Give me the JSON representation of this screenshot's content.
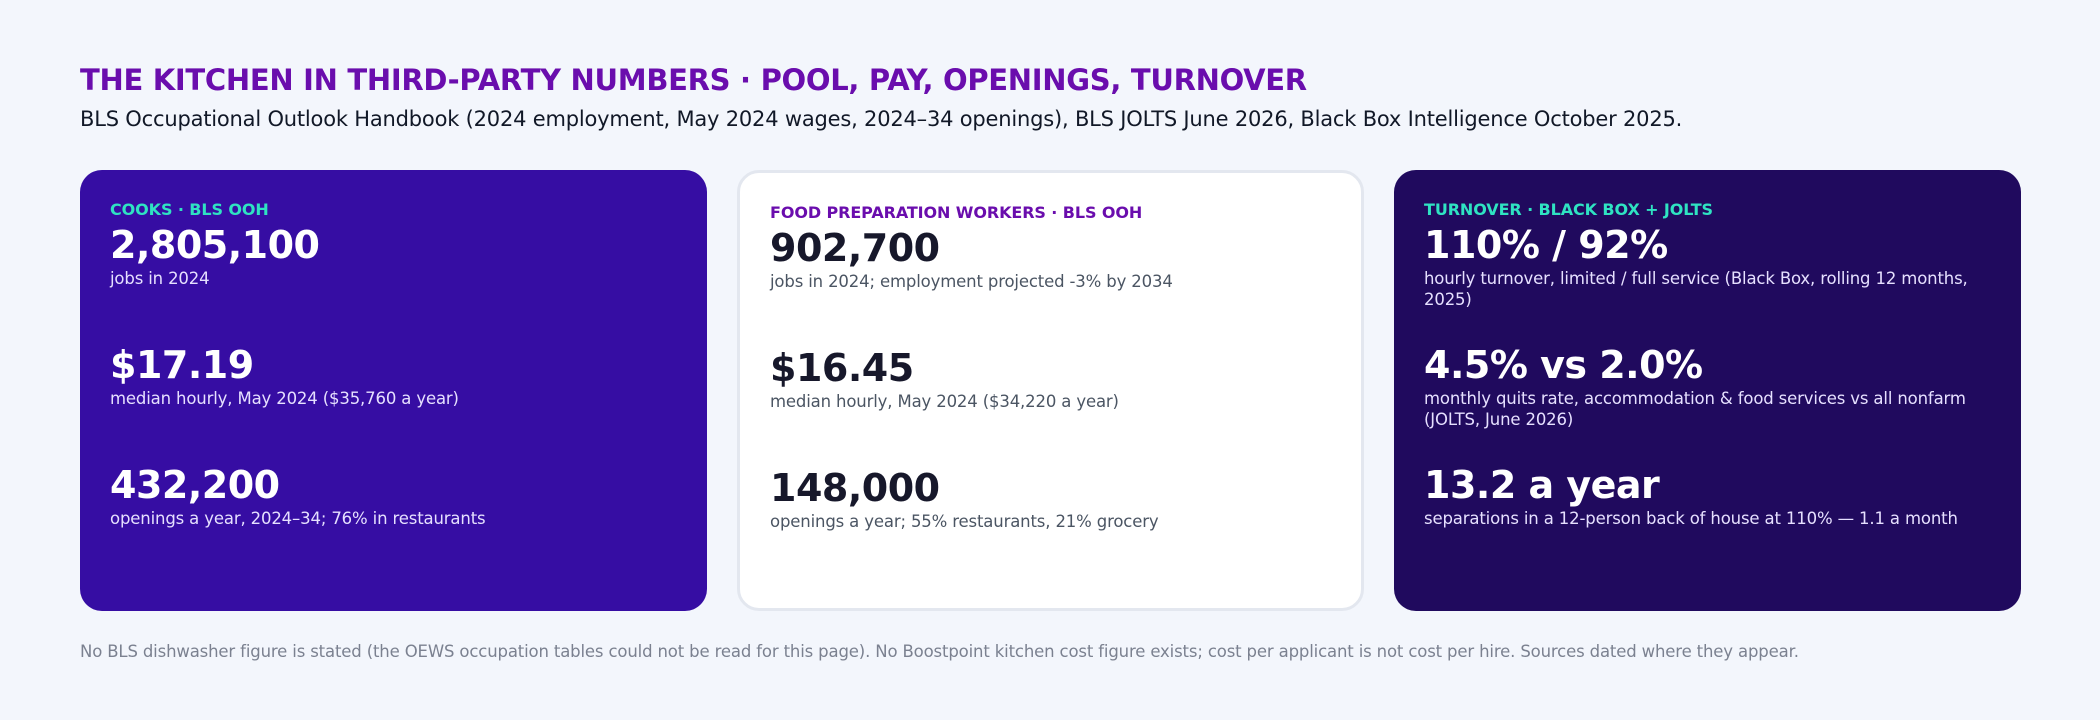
{
  "header": {
    "title": "THE KITCHEN IN THIRD-PARTY NUMBERS · POOL, PAY, OPENINGS, TURNOVER",
    "subtitle": "BLS Occupational Outlook Handbook (2024 employment, May 2024 wages, 2024–34 openings), BLS JOLTS June 2026, Black Box Intelligence October 2025."
  },
  "colors": {
    "title_accent": "#6a0dad",
    "card_purple": "#360da3",
    "card_dark": "#200a5e",
    "label_teal": "#2fe3c2"
  },
  "cards": [
    {
      "label": "COOKS · BLS OOH",
      "stats": [
        {
          "value": "2,805,100",
          "caption": "jobs in 2024"
        },
        {
          "value": "$17.19",
          "caption": "median hourly, May 2024 ($35,760 a year)"
        },
        {
          "value": "432,200",
          "caption": "openings a year, 2024–34; 76% in restaurants"
        }
      ]
    },
    {
      "label": "FOOD PREPARATION WORKERS · BLS OOH",
      "stats": [
        {
          "value": "902,700",
          "caption": "jobs in 2024; employment projected -3% by 2034"
        },
        {
          "value": "$16.45",
          "caption": "median hourly, May 2024 ($34,220 a year)"
        },
        {
          "value": "148,000",
          "caption": "openings a year; 55% restaurants, 21% grocery"
        }
      ]
    },
    {
      "label": "TURNOVER · BLACK BOX + JOLTS",
      "stats": [
        {
          "value": "110% / 92%",
          "caption": "hourly turnover, limited / full service (Black Box, rolling 12 months, 2025)"
        },
        {
          "value": "4.5% vs 2.0%",
          "caption": "monthly quits rate, accommodation & food services vs all nonfarm (JOLTS, June 2026)"
        },
        {
          "value": "13.2 a year",
          "caption": "separations in a 12-person back of house at 110% — 1.1 a month"
        }
      ]
    }
  ],
  "footnote": "No BLS dishwasher figure is stated (the OEWS occupation tables could not be read for this page). No Boostpoint kitchen cost figure exists; cost per applicant is not cost per hire. Sources dated where they appear."
}
